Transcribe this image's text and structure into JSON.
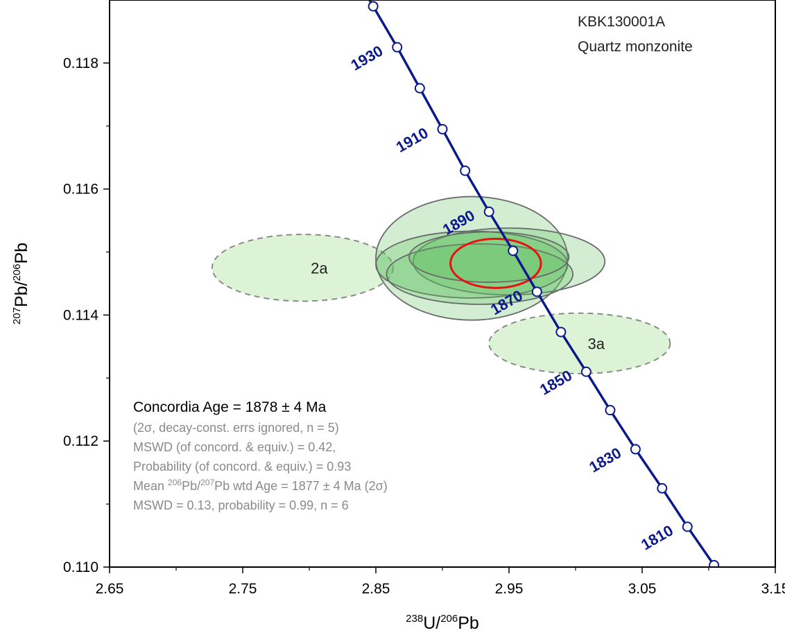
{
  "chart_data": {
    "type": "scatter",
    "title": "",
    "xlabel": {
      "sup1": "238",
      "base1": "U/",
      "sup2": "206",
      "base2": "Pb"
    },
    "ylabel": {
      "sup1": "207",
      "base1": "Pb/",
      "sup2": "206",
      "base2": "Pb"
    },
    "xlim": [
      2.65,
      3.15
    ],
    "ylim": [
      0.11,
      0.119
    ],
    "x_ticks": [
      2.65,
      2.75,
      2.85,
      2.95,
      3.05,
      3.15
    ],
    "x_tick_labels": [
      "2.65",
      "2.75",
      "2.85",
      "2.95",
      "3.05",
      "3.15"
    ],
    "y_ticks": [
      0.11,
      0.112,
      0.114,
      0.116,
      0.118
    ],
    "y_tick_labels": [
      "0.110",
      "0.112",
      "0.114",
      "0.116",
      "0.118"
    ],
    "grid": false,
    "sample": {
      "id": "KBK130001A",
      "rock": "Quartz monzonite"
    },
    "concordia": {
      "color": "#0b1a8a",
      "points": [
        {
          "age": 1935,
          "x": 2.848,
          "y": 0.1189
        },
        {
          "age": 1930,
          "x": 2.866,
          "y": 0.11825
        },
        {
          "age": 1920,
          "x": 2.883,
          "y": 0.1176
        },
        {
          "age": 1910,
          "x": 2.9,
          "y": 0.11695
        },
        {
          "age": 1900,
          "x": 2.917,
          "y": 0.11629
        },
        {
          "age": 1890,
          "x": 2.935,
          "y": 0.11564
        },
        {
          "age": 1880,
          "x": 2.953,
          "y": 0.11502
        },
        {
          "age": 1870,
          "x": 2.971,
          "y": 0.11437
        },
        {
          "age": 1860,
          "x": 2.989,
          "y": 0.11373
        },
        {
          "age": 1850,
          "x": 3.008,
          "y": 0.1131
        },
        {
          "age": 1840,
          "x": 3.026,
          "y": 0.11249
        },
        {
          "age": 1830,
          "x": 3.045,
          "y": 0.11187
        },
        {
          "age": 1820,
          "x": 3.065,
          "y": 0.11125
        },
        {
          "age": 1810,
          "x": 3.084,
          "y": 0.11064
        },
        {
          "age": 1800,
          "x": 3.104,
          "y": 0.11003
        }
      ],
      "labels": [
        {
          "text": "1930",
          "age": 1930
        },
        {
          "text": "1910",
          "age": 1910
        },
        {
          "text": "1890",
          "age": 1890
        },
        {
          "text": "1870",
          "age": 1870
        },
        {
          "text": "1850",
          "age": 1850
        },
        {
          "text": "1830",
          "age": 1830
        },
        {
          "text": "1810",
          "age": 1810
        }
      ]
    },
    "ellipses": [
      {
        "name": "2a",
        "cx": 2.795,
        "cy": 0.11475,
        "rx": 0.068,
        "ry": 0.00053,
        "excluded": true
      },
      {
        "name": "3a",
        "cx": 3.003,
        "cy": 0.11355,
        "rx": 0.068,
        "ry": 0.00048,
        "excluded": true
      },
      {
        "name": "",
        "cx": 2.922,
        "cy": 0.1149,
        "rx": 0.072,
        "ry": 0.00098,
        "excluded": false
      },
      {
        "name": "",
        "cx": 2.95,
        "cy": 0.11485,
        "rx": 0.072,
        "ry": 0.00053,
        "excluded": false
      },
      {
        "name": "",
        "cx": 2.922,
        "cy": 0.1148,
        "rx": 0.072,
        "ry": 0.00053,
        "excluded": false
      },
      {
        "name": "",
        "cx": 2.928,
        "cy": 0.11465,
        "rx": 0.07,
        "ry": 0.00048,
        "excluded": false
      },
      {
        "name": "",
        "cx": 2.935,
        "cy": 0.11492,
        "rx": 0.06,
        "ry": 0.0004,
        "excluded": false
      }
    ],
    "concordia_age_ellipse": {
      "cx": 2.94,
      "cy": 0.11482,
      "rx": 0.034,
      "ry": 0.00039
    },
    "results": {
      "title": "Concordia Age = 1878 ± 4 Ma",
      "line1": "(2σ, decay-const. errs ignored, n = 5)",
      "line2": "MSWD (of concord. & equiv.) = 0.42,",
      "line3": "Probability (of concord. & equiv.) = 0.93",
      "line4": {
        "pre": "Mean ",
        "sup1": "206",
        "mid1": "Pb/",
        "sup2": "207",
        "post": "Pb wtd Age = 1877 ± 4  Ma (2σ)"
      },
      "line5": "MSWD = 0.13, probability = 0.99, n = 6"
    },
    "colors": {
      "concordia": "#0b1a8a",
      "ellipse_fill": "#5cc05c",
      "ellipse_stroke": "#6a6a6a",
      "excluded_fill": "#d8f2d2",
      "excluded_stroke": "#8a8a8a",
      "age_ellipse": "#e81010"
    }
  }
}
